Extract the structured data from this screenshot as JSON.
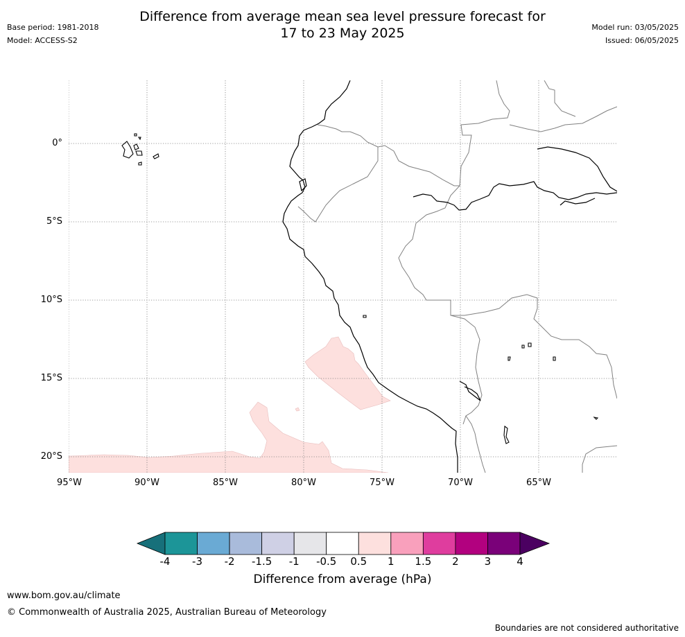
{
  "title": {
    "line1": "Difference from average mean sea level pressure forecast for",
    "line2": "17 to 23 May 2025"
  },
  "meta_left": {
    "base_period": "Base period: 1981-2018",
    "model": "Model: ACCESS-S2"
  },
  "meta_right": {
    "model_run": "Model run: 03/05/2025",
    "issued": "Issued: 06/05/2025"
  },
  "map": {
    "lat_labels": [
      "0°",
      "5°S",
      "10°S",
      "15°S",
      "20°S"
    ],
    "lon_labels": [
      "95°W",
      "90°W",
      "85°W",
      "80°W",
      "75°W",
      "70°W",
      "65°W"
    ],
    "anomaly_fill_color": "#fde0de",
    "coast_color": "#000000",
    "border_color": "#808080",
    "grid": "dotted"
  },
  "colorbar": {
    "title": "Difference from average (hPa)",
    "ticks": [
      "-4",
      "-3",
      "-2",
      "-1.5",
      "-1",
      "-0.5",
      "0.5",
      "1",
      "1.5",
      "2",
      "3",
      "4"
    ],
    "colors": [
      "#17707a",
      "#1c9598",
      "#6aaad4",
      "#a9bbdb",
      "#cfd0e5",
      "#e6e6e9",
      "#ffffff",
      "#fde0de",
      "#f9a0bc",
      "#df3d9e",
      "#b2017f",
      "#7a0179",
      "#4b0061"
    ]
  },
  "footer": {
    "url": "www.bom.gov.au/climate",
    "copyright": "© Commonwealth of Australia 2025, Australian Bureau of Meteorology",
    "disclaimer": "Boundaries are not considered authoritative"
  }
}
